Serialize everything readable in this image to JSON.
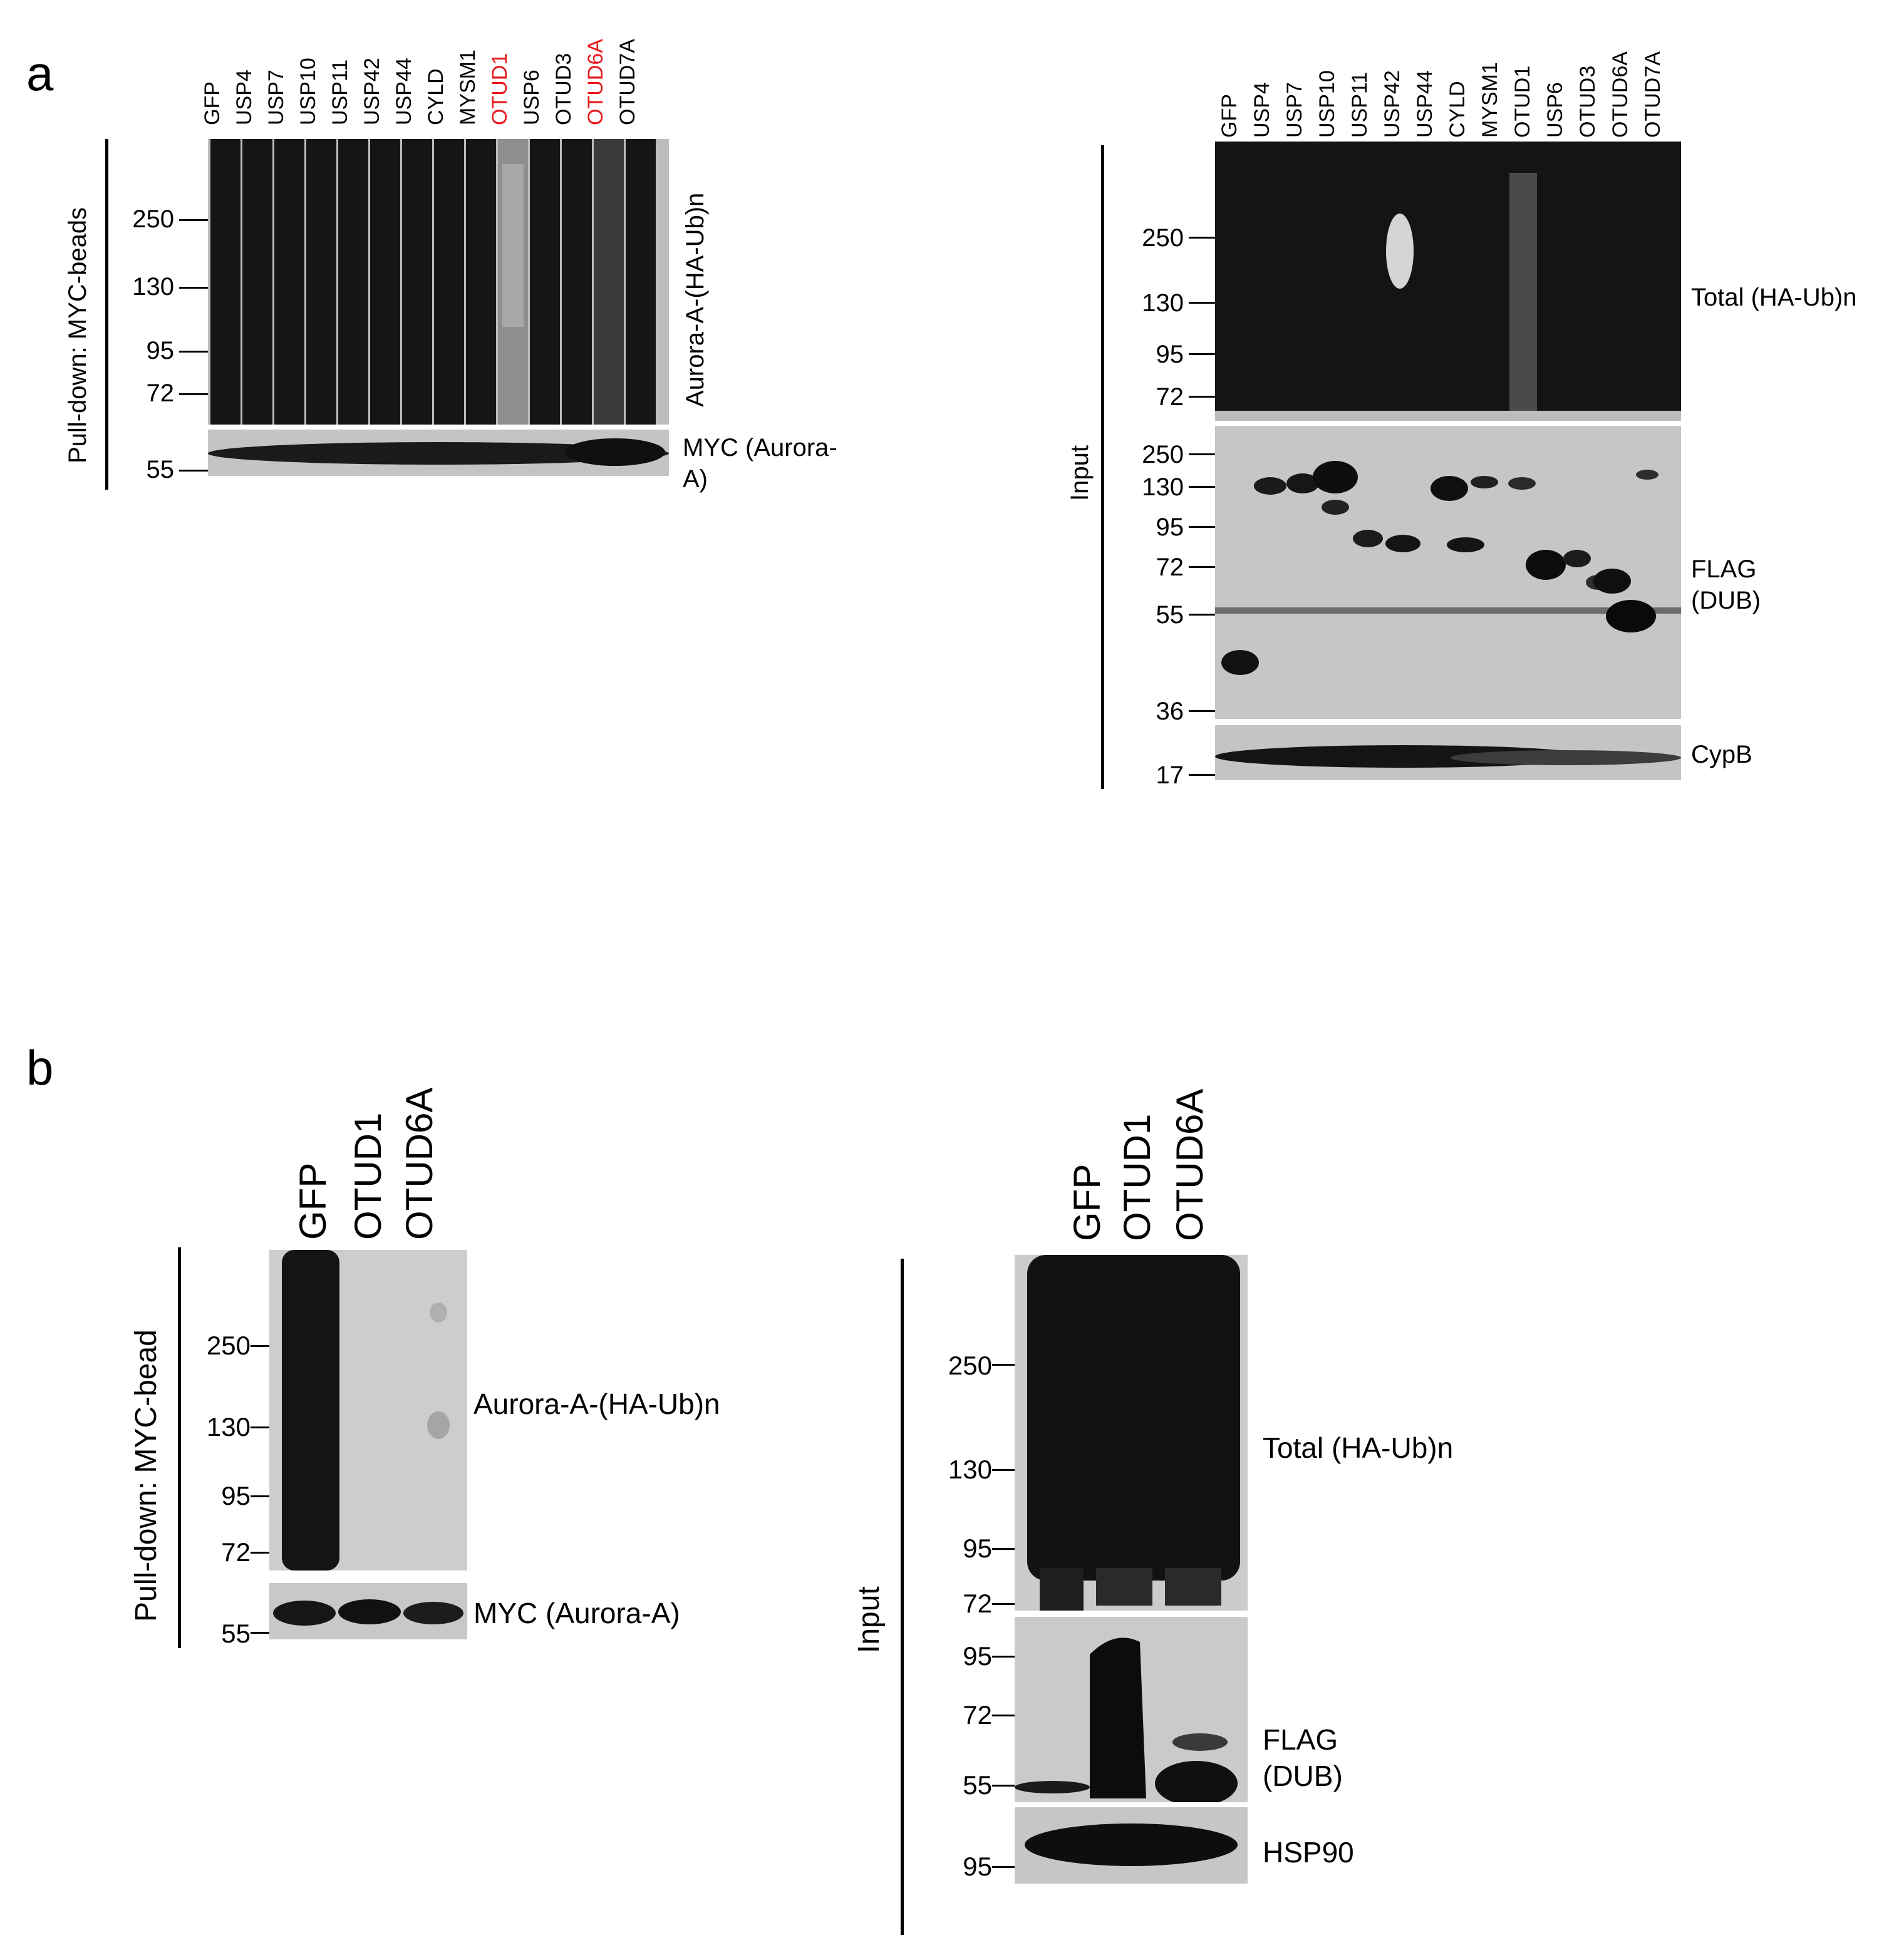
{
  "panel_a": {
    "letter": "a",
    "left": {
      "lanes": [
        "GFP",
        "USP4",
        "USP7",
        "USP10",
        "USP11",
        "USP42",
        "USP44",
        "CYLD",
        "MYSM1",
        "OTUD1",
        "USP6",
        "OTUD3",
        "OTUD6A",
        "OTUD7A"
      ],
      "highlight_lanes": [
        "OTUD1",
        "OTUD6A"
      ],
      "highlight_color": "#e8191c",
      "side_label": "Pull-down: MYC-beads",
      "upper_blot": {
        "label": "Aurora-A-(HA-Ub)n",
        "markers": [
          "250",
          "130",
          "95",
          "72"
        ]
      },
      "lower_blot": {
        "label_line1": "MYC (Aurora-",
        "label_line2": "A)",
        "markers": [
          "55"
        ]
      }
    },
    "right": {
      "lanes": [
        "GFP",
        "USP4",
        "USP7",
        "USP10",
        "USP11",
        "USP42",
        "USP44",
        "CYLD",
        "MYSM1",
        "OTUD1",
        "USP6",
        "OTUD3",
        "OTUD6A",
        "OTUD7A"
      ],
      "side_label": "Input",
      "blot1": {
        "label": "Total (HA-Ub)n",
        "markers": [
          "250",
          "130",
          "95",
          "72"
        ]
      },
      "blot2": {
        "label_line1": "FLAG",
        "label_line2": "(DUB)",
        "markers": [
          "250",
          "130",
          "95",
          "72",
          "55",
          "36"
        ]
      },
      "blot3": {
        "label": "CypB",
        "markers": [
          "17"
        ]
      }
    }
  },
  "panel_b": {
    "letter": "b",
    "left": {
      "lanes": [
        "GFP",
        "OTUD1",
        "OTUD6A"
      ],
      "side_label": "Pull-down: MYC-bead",
      "upper_blot": {
        "label": "Aurora-A-(HA-Ub)n",
        "markers": [
          "250",
          "130",
          "95",
          "72"
        ]
      },
      "lower_blot": {
        "label": "MYC (Aurora-A)",
        "markers": [
          "55"
        ]
      }
    },
    "right": {
      "lanes": [
        "GFP",
        "OTUD1",
        "OTUD6A"
      ],
      "side_label": "Input",
      "blot1": {
        "label": "Total (HA-Ub)n",
        "markers": [
          "250",
          "130",
          "95",
          "72"
        ]
      },
      "blot2": {
        "label_line1": "FLAG",
        "label_line2": "(DUB)",
        "markers": [
          "95",
          "72",
          "55"
        ]
      },
      "blot3": {
        "label": "HSP90",
        "markers": [
          "95"
        ]
      }
    }
  }
}
